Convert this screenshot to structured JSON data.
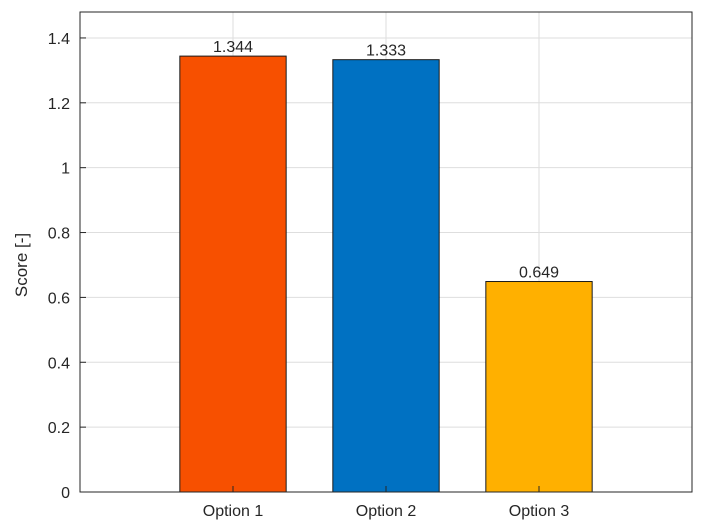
{
  "chart_data": {
    "type": "bar",
    "categories": [
      "Option 1",
      "Option 2",
      "Option 3"
    ],
    "values": [
      1.344,
      1.333,
      0.649
    ],
    "value_labels": [
      "1.344",
      "1.333",
      "0.649"
    ],
    "bar_colors": [
      "#f75000",
      "#0071c2",
      "#ffb000"
    ],
    "ylabel": "Score [-]",
    "ylim": [
      0,
      1.48
    ],
    "yticks": [
      0,
      0.2,
      0.4,
      0.6,
      0.8,
      1,
      1.2,
      1.4
    ],
    "ytick_labels": [
      "0",
      "0.2",
      "0.4",
      "0.6",
      "0.8",
      "1",
      "1.2",
      "1.4"
    ],
    "grid": true,
    "legend": "none"
  }
}
